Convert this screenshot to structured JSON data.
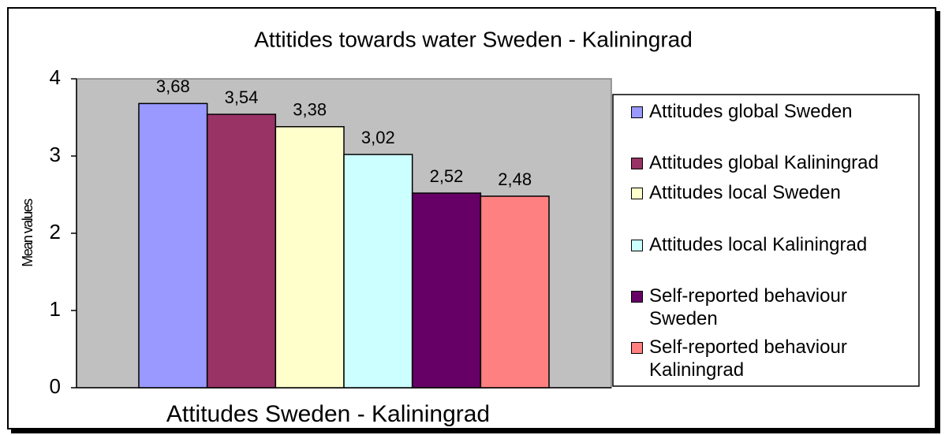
{
  "chart_data": {
    "type": "bar",
    "title": "Attitides towards water Sweden - Kaliningrad",
    "ylabel": "Mean values",
    "categories": [
      "Attitudes Sweden - Kaliningrad"
    ],
    "ylim": [
      0,
      4
    ],
    "yticks": [
      0,
      1,
      2,
      3,
      4
    ],
    "grid": false,
    "legend": "right",
    "series": [
      {
        "name": "Attitudes global Sweden",
        "color": "#9999ff",
        "values": [
          3.68
        ],
        "value_labels": [
          "3,68"
        ]
      },
      {
        "name": "Attitudes global Kaliningrad",
        "color": "#993366",
        "values": [
          3.54
        ],
        "value_labels": [
          "3,54"
        ]
      },
      {
        "name": "Attitudes local Sweden",
        "color": "#ffffcc",
        "values": [
          3.38
        ],
        "value_labels": [
          "3,38"
        ]
      },
      {
        "name": "Attitudes local Kaliningrad",
        "color": "#ccffff",
        "values": [
          3.02
        ],
        "value_labels": [
          "3,02"
        ]
      },
      {
        "name": "Self-reported behaviour Sweden",
        "color": "#660066",
        "values": [
          2.52
        ],
        "value_labels": [
          "2,52"
        ]
      },
      {
        "name": "Self-reported behaviour Kaliningrad",
        "color": "#ff8080",
        "values": [
          2.48
        ],
        "value_labels": [
          "2,48"
        ]
      }
    ]
  }
}
